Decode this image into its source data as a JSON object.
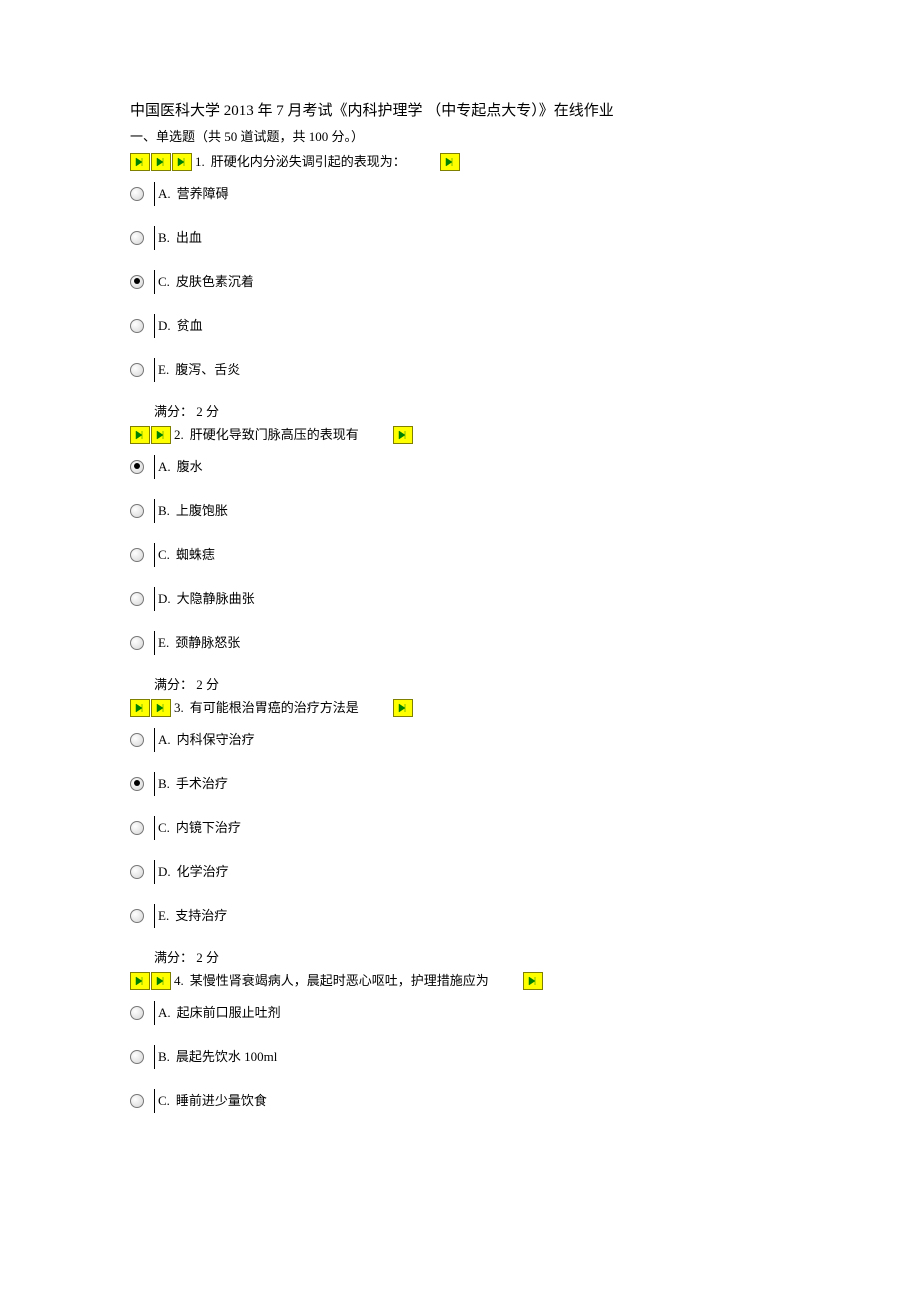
{
  "header": {
    "title": "中国医科大学  2013 年 7 月考试《内科护理学 （中专起点大专）》在线作业",
    "subtitle": "一、单选题（共   50 道试题，共   100 分。）"
  },
  "icons": {
    "arrow_fill": "#008000",
    "box_bg": "#ffff00",
    "box_border": "#808000"
  },
  "questions": [
    {
      "arrows_before": 3,
      "number": "1.",
      "text": "肝硬化内分泌失调引起的表现为：",
      "arrows_after": 1,
      "selected": "C",
      "options": [
        {
          "letter": "A.",
          "text": "营养障碍"
        },
        {
          "letter": "B.",
          "text": "出血"
        },
        {
          "letter": "C.",
          "text": "皮肤色素沉着"
        },
        {
          "letter": "D.",
          "text": "贫血"
        },
        {
          "letter": "E.",
          "text": "腹泻、舌炎"
        }
      ],
      "score": "满分：  2  分"
    },
    {
      "arrows_before": 2,
      "number": "2.",
      "text": "肝硬化导致门脉高压的表现有",
      "arrows_after": 1,
      "selected": "A",
      "options": [
        {
          "letter": "A.",
          "text": "腹水"
        },
        {
          "letter": "B.",
          "text": "上腹饱胀"
        },
        {
          "letter": "C.",
          "text": "蜘蛛痣"
        },
        {
          "letter": "D.",
          "text": "大隐静脉曲张"
        },
        {
          "letter": "E.",
          "text": "颈静脉怒张"
        }
      ],
      "score": "满分：  2  分"
    },
    {
      "arrows_before": 2,
      "number": "3.",
      "text": "有可能根治胃癌的治疗方法是",
      "arrows_after": 1,
      "selected": "B",
      "options": [
        {
          "letter": "A.",
          "text": "内科保守治疗"
        },
        {
          "letter": "B.",
          "text": "手术治疗"
        },
        {
          "letter": "C.",
          "text": "内镜下治疗"
        },
        {
          "letter": "D.",
          "text": "化学治疗"
        },
        {
          "letter": "E.",
          "text": "支持治疗"
        }
      ],
      "score": "满分：  2  分"
    },
    {
      "arrows_before": 2,
      "number": "4.",
      "text": "某慢性肾衰竭病人，晨起时恶心呕吐，护理措施应为",
      "arrows_after": 1,
      "selected": "",
      "options": [
        {
          "letter": "A.",
          "text": "起床前口服止吐剂"
        },
        {
          "letter": "B.",
          "text": "晨起先饮水   100ml"
        },
        {
          "letter": "C.",
          "text": "睡前进少量饮食"
        }
      ],
      "score": ""
    }
  ]
}
